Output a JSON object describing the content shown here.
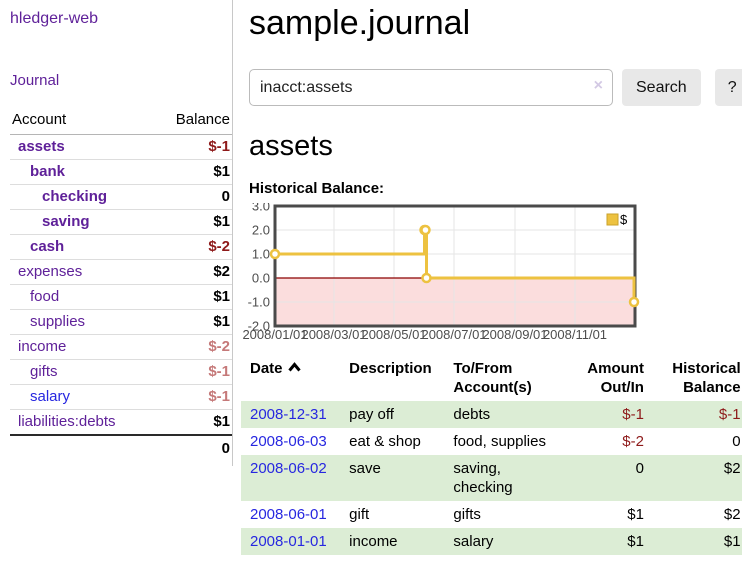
{
  "colors": {
    "purple": "#5f2199",
    "link-blue": "#2727e0",
    "neg-strong": "#8e1a1a",
    "neg-muted": "#c57979",
    "row-green": "#dcedd5",
    "chart-gold": "#edc240",
    "chart-pink": "#fbdddd",
    "chart-zero": "#8b0000",
    "chart-border": "#4a4a4a",
    "grid": "#e5e5e5",
    "tick-text": "#4d4d4d"
  },
  "sidebar": {
    "brand": "hledger-web",
    "journal_link": "Journal",
    "accounts_table": {
      "account_header": "Account",
      "balance_header": "Balance",
      "rows": [
        {
          "name": "assets",
          "depth": 1,
          "in_account": true,
          "balance": "$-1",
          "balance_class": "neg-strong"
        },
        {
          "name": "bank",
          "depth": 2,
          "in_account": true,
          "balance": "$1",
          "balance_class": ""
        },
        {
          "name": "checking",
          "depth": 3,
          "in_account": true,
          "balance": "0",
          "balance_class": ""
        },
        {
          "name": "saving",
          "depth": 3,
          "in_account": true,
          "balance": "$1",
          "balance_class": ""
        },
        {
          "name": "cash",
          "depth": 2,
          "in_account": true,
          "balance": "$-2",
          "balance_class": "neg-strong"
        },
        {
          "name": "expenses",
          "depth": 1,
          "in_account": false,
          "balance": "$2",
          "balance_class": ""
        },
        {
          "name": "food",
          "depth": 2,
          "in_account": false,
          "balance": "$1",
          "balance_class": ""
        },
        {
          "name": "supplies",
          "depth": 2,
          "in_account": false,
          "balance": "$1",
          "balance_class": ""
        },
        {
          "name": "income",
          "depth": 1,
          "in_account": false,
          "balance": "$-2",
          "balance_class": "neg-muted"
        },
        {
          "name": "gifts",
          "depth": 2,
          "in_account": false,
          "balance": "$-1",
          "balance_class": "neg-muted"
        },
        {
          "name": "salary",
          "depth": 2,
          "in_account": false,
          "visited": true,
          "balance": "$-1",
          "balance_class": "neg-muted"
        },
        {
          "name": "liabilities:debts",
          "depth": 1,
          "in_account": false,
          "balance": "$1",
          "balance_class": ""
        }
      ],
      "total": "0"
    }
  },
  "main": {
    "title": "sample.journal",
    "search": {
      "value": "inacct:assets",
      "clear_icon": "×",
      "button_label": "Search",
      "help_label": "?"
    },
    "account_heading": "assets",
    "chart_label": "Historical Balance:"
  },
  "chart_data": {
    "type": "line",
    "step": true,
    "title": "Historical Balance:",
    "series": [
      {
        "name": "$",
        "x": [
          "2008-01-01",
          "2008-06-01",
          "2008-06-02",
          "2008-06-03",
          "2008-12-31"
        ],
        "values": [
          1,
          2,
          2,
          0,
          -1
        ]
      }
    ],
    "xlim": [
      "2008-01-01",
      "2009-01-01"
    ],
    "ylim": [
      -2,
      3
    ],
    "yticks": [
      "3.0",
      "2.0",
      "1.0",
      "0.0",
      "-1.0",
      "-2.0"
    ],
    "xticks": [
      {
        "t": "2008-01-01",
        "label": "2008/01/01"
      },
      {
        "t": "2008-03-01",
        "label": "2008/03/01"
      },
      {
        "t": "2008-05-01",
        "label": "2008/05/01"
      },
      {
        "t": "2008-07-01",
        "label": "2008/07/01"
      },
      {
        "t": "2008-09-01",
        "label": "2008/09/01"
      },
      {
        "t": "2008-11-01",
        "label": "2008/11/01"
      }
    ],
    "legend": {
      "label": "$",
      "position": "top-right"
    },
    "negative_region_shaded": true,
    "grid": true
  },
  "register_table": {
    "headers": {
      "date": "Date",
      "description": "Description",
      "to_from": "To/From\nAccount(s)",
      "amount": "Amount\nOut/In",
      "balance": "Historical\nBalance"
    },
    "rows": [
      {
        "date": "2008-12-31",
        "description": "pay off",
        "to_from": "debts",
        "amount": "$-1",
        "amount_negative": true,
        "balance": "$-1",
        "balance_negative": true
      },
      {
        "date": "2008-06-03",
        "description": "eat & shop",
        "to_from": "food, supplies",
        "amount": "$-2",
        "amount_negative": true,
        "balance": "0",
        "balance_negative": false
      },
      {
        "date": "2008-06-02",
        "description": "save",
        "to_from": "saving,\nchecking",
        "amount": "0",
        "amount_negative": false,
        "balance": "$2",
        "balance_negative": false
      },
      {
        "date": "2008-06-01",
        "description": "gift",
        "to_from": "gifts",
        "amount": "$1",
        "amount_negative": false,
        "balance": "$2",
        "balance_negative": false
      },
      {
        "date": "2008-01-01",
        "description": "income",
        "to_from": "salary",
        "amount": "$1",
        "amount_negative": false,
        "balance": "$1",
        "balance_negative": false
      }
    ]
  }
}
